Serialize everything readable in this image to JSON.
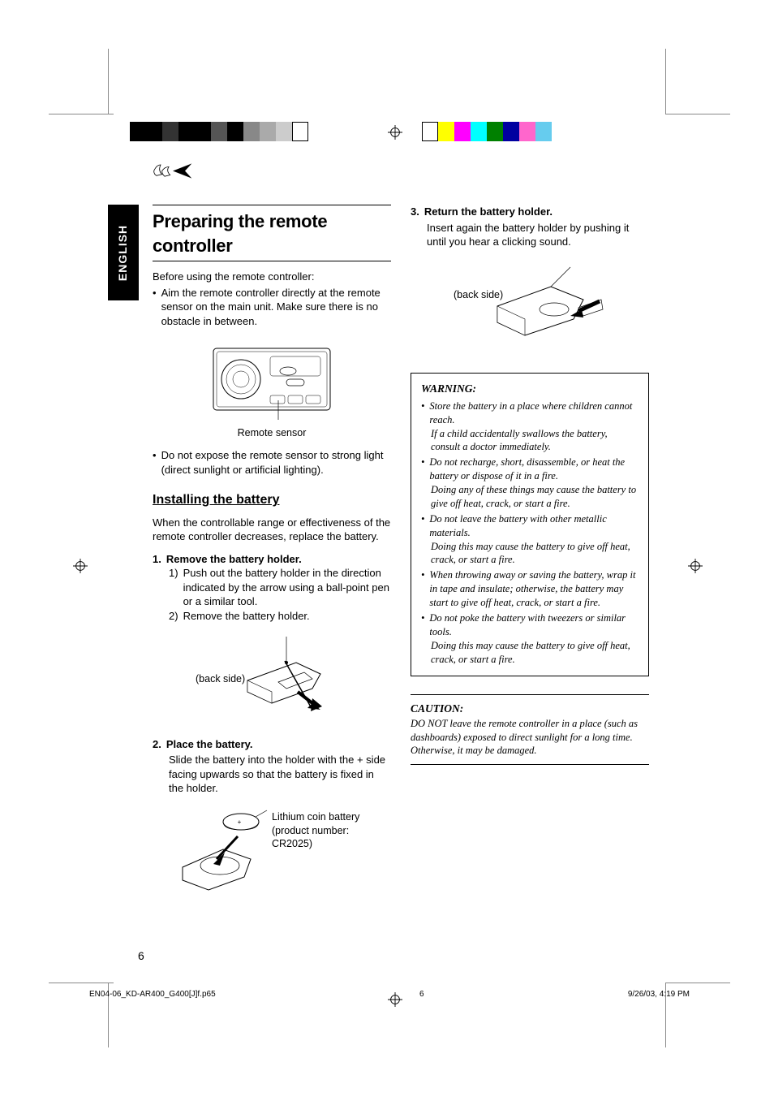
{
  "meta": {
    "language_tab": "ENGLISH",
    "page_number": "6",
    "footer_file": "EN04-06_KD-AR400_G400[J]f.p65",
    "footer_page": "6",
    "footer_datetime": "9/26/03, 4:19 PM"
  },
  "color_bar_left": [
    "#000000",
    "#000000",
    "#333333",
    "#000000",
    "#000000",
    "#555555",
    "#000000",
    "#888888",
    "#aaaaaa",
    "#cccccc",
    "#ffffff"
  ],
  "color_bar_right": [
    "#ffffff",
    "#ffff00",
    "#ff00ff",
    "#00ffff",
    "#008000",
    "#0000a0",
    "#ff66cc",
    "#66ccee"
  ],
  "title": "Preparing the remote controller",
  "intro_lead": "Before using the remote controller:",
  "intro_bullets": [
    "Aim the remote controller directly at the remote sensor on the main unit. Make sure there is no obstacle in between."
  ],
  "fig1_caption": "Remote sensor",
  "intro_bullet2": "Do not expose the remote sensor to strong light (direct sunlight or artificial lighting).",
  "section_install": "Installing the battery",
  "install_text": "When the controllable range or effectiveness of the remote controller decreases, replace the battery.",
  "steps": [
    {
      "num": "1.",
      "label": "Remove the battery holder.",
      "subs": [
        {
          "n": "1)",
          "t": "Push out the battery holder in the direction indicated by the arrow using a ball-point pen or a similar tool."
        },
        {
          "n": "2)",
          "t": "Remove the battery holder."
        }
      ],
      "fig_label": "(back side)"
    },
    {
      "num": "2.",
      "label": "Place the battery.",
      "body": "Slide the battery into the holder with the + side facing upwards so that the battery is fixed in the holder.",
      "fig_side_label": "Lithium coin battery (product number: CR2025)"
    },
    {
      "num": "3.",
      "label": "Return the battery holder.",
      "body": "Insert again the battery holder by pushing it until you hear a clicking sound.",
      "fig_label": "(back side)"
    }
  ],
  "warning": {
    "title": "WARNING:",
    "items": [
      {
        "main": "Store the battery in a place where children cannot reach.",
        "cont": "If a child accidentally swallows the battery, consult a doctor immediately."
      },
      {
        "main": "Do not recharge, short, disassemble, or heat the battery or dispose of it in a fire.",
        "cont": "Doing any of these things may cause the battery to give off heat, crack, or start a fire."
      },
      {
        "main": "Do not leave the battery with other metallic materials.",
        "cont": "Doing this may cause the battery to give off heat, crack, or start a fire."
      },
      {
        "main": "When throwing away or saving the battery, wrap it in tape and insulate; otherwise, the battery may start to give off heat, crack, or start a fire."
      },
      {
        "main": "Do not poke the battery with tweezers or similar tools.",
        "cont": "Doing this may cause the battery to give off heat, crack, or start a fire."
      }
    ]
  },
  "caution": {
    "title": "CAUTION:",
    "text": "DO NOT leave the remote controller in a place (such as dashboards) exposed to direct sunlight for a long time. Otherwise, it may be damaged."
  }
}
